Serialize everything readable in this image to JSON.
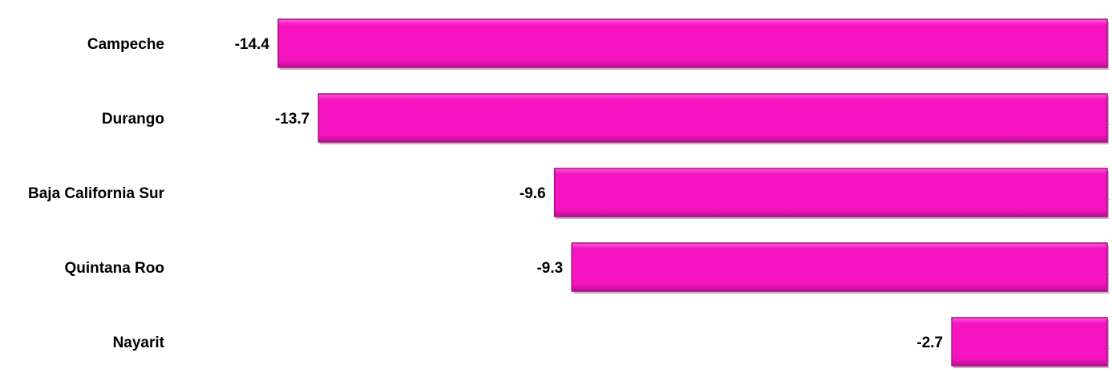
{
  "chart_data": {
    "type": "bar",
    "orientation": "horizontal",
    "categories": [
      "Campeche",
      "Durango",
      "Baja California Sur",
      "Quintana Roo",
      "Nayarit"
    ],
    "values": [
      -14.4,
      -13.7,
      -9.6,
      -9.3,
      -2.7
    ],
    "value_labels": [
      "-14.4",
      "-13.7",
      "-9.6",
      "-9.3",
      "-2.7"
    ],
    "title": "",
    "xlabel": "",
    "ylabel": "",
    "xlim": [
      -14.4,
      0
    ],
    "grid": false,
    "legend": "none",
    "colors": {
      "bar_fill": "#f514c0",
      "bar_edge": "#a0127e"
    }
  }
}
